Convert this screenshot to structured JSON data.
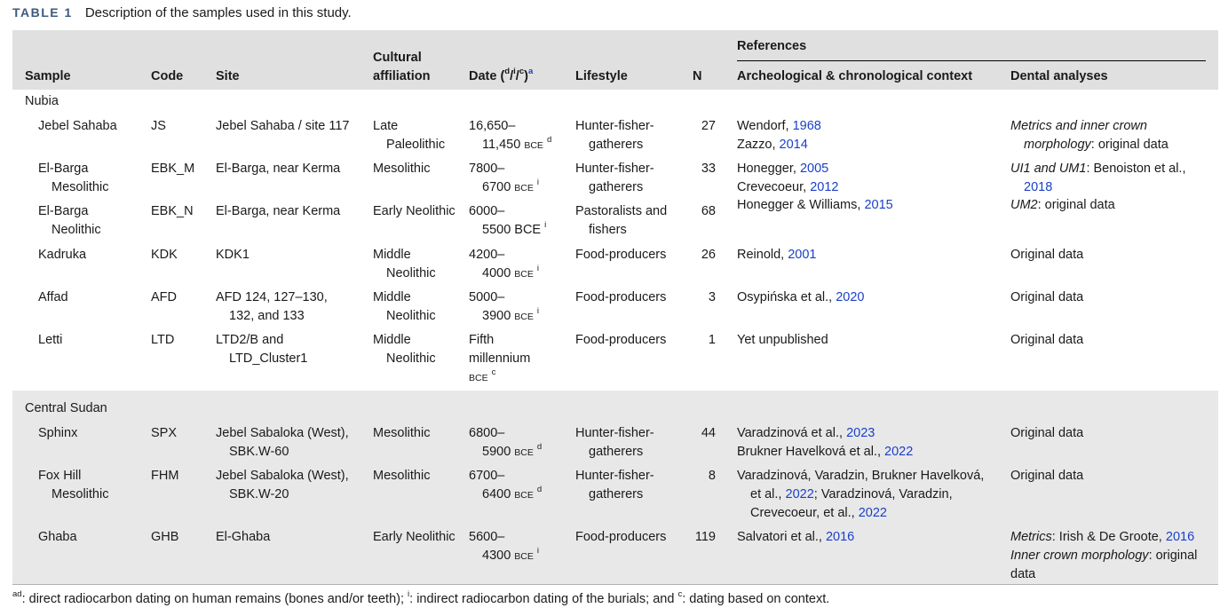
{
  "caption": {
    "label": "TABLE 1",
    "text": "Description of the samples used in this study."
  },
  "headers": {
    "sample": "Sample",
    "code": "Code",
    "site": "Site",
    "cultural_line1": "Cultural",
    "cultural_line2": "affiliation",
    "date_prefix": "Date (",
    "date_d": "d",
    "date_sep1": "/",
    "date_i": "i",
    "date_sep2": "/",
    "date_c": "c",
    "date_suffix": ")",
    "date_note": "a",
    "lifestyle": "Lifestyle",
    "n": "N",
    "references": "References",
    "archeological": "Archeological & chronological context",
    "dental": "Dental analyses"
  },
  "groups": {
    "nubia": "Nubia",
    "central": "Central Sudan"
  },
  "rows": {
    "js": {
      "sample": "Jebel Sahaba",
      "code": "JS",
      "site": "Jebel Sahaba / site 117",
      "cult": "Late Paleolithic",
      "date1": "16,650–",
      "date2": "11,450",
      "era": "BCE",
      "sup": "d",
      "life": "Hunter-fisher-gatherers",
      "n": "27",
      "ref1_a": "Wendorf, ",
      "ref1_y": "1968",
      "ref2_a": "Zazzo, ",
      "ref2_y": "2014",
      "dent_i": "Metrics and inner crown morphology",
      "dent_t": ": original data"
    },
    "ebkm": {
      "sample": "El-Barga Mesolithic",
      "code": "EBK_M",
      "site": "El-Barga, near Kerma",
      "cult": "Mesolithic",
      "date1": "7800–",
      "date2": "6700",
      "era": "BCE",
      "sup": "i",
      "life": "Hunter-fisher-gatherers",
      "n": "33",
      "ref1_a": "Honegger, ",
      "ref1_y": "2005",
      "ref2_a": "Crevecoeur, ",
      "ref2_y": "2012",
      "dent_i": "UI1 and UM1",
      "dent_t": ": Benoiston et al., ",
      "dent_y": "2018"
    },
    "ebkn": {
      "sample": "El-Barga Neolithic",
      "code": "EBK_N",
      "site": "El-Barga, near Kerma",
      "cult": "Early Neolithic",
      "date1": "6000–",
      "date2": "5500 BCE",
      "sup": "i",
      "life": "Pastoralists and fishers",
      "n": "68",
      "ref1_a": "Honegger & Williams, ",
      "ref1_y": "2015",
      "dent_i": "UM2",
      "dent_t": ": original data"
    },
    "kdk": {
      "sample": "Kadruka",
      "code": "KDK",
      "site": "KDK1",
      "cult": "Middle Neolithic",
      "date1": "4200–",
      "date2": "4000",
      "era": "BCE",
      "sup": "i",
      "life": "Food-producers",
      "n": "26",
      "ref1_a": "Reinold, ",
      "ref1_y": "2001",
      "dent": "Original data"
    },
    "afd": {
      "sample": "Affad",
      "code": "AFD",
      "site": "AFD 124, 127–130, 132, and 133",
      "cult": "Middle Neolithic",
      "date1": "5000–",
      "date2": "3900",
      "era": "BCE",
      "sup": "i",
      "life": "Food-producers",
      "n": "3",
      "ref1_a": "Osypińska et al., ",
      "ref1_y": "2020",
      "dent": "Original data"
    },
    "ltd": {
      "sample": "Letti",
      "code": "LTD",
      "site": "LTD2/B and LTD_Cluster1",
      "cult": "Middle Neolithic",
      "date1": "Fifth",
      "date2": "millennium",
      "era": "BCE",
      "sup": "c",
      "life": "Food-producers",
      "n": "1",
      "ref1_a": "Yet unpublished",
      "dent": "Original data"
    },
    "spx": {
      "sample": "Sphinx",
      "code": "SPX",
      "site": "Jebel Sabaloka (West), SBK.W-60",
      "cult": "Mesolithic",
      "date1": "6800–",
      "date2": "5900",
      "era": "BCE",
      "sup": "d",
      "life": "Hunter-fisher-gatherers",
      "n": "44",
      "ref1_a": "Varadzinová et al., ",
      "ref1_y": "2023",
      "ref2_a": "Brukner Havelková et al., ",
      "ref2_y": "2022",
      "dent": "Original data"
    },
    "fhm": {
      "sample": "Fox Hill Mesolithic",
      "code": "FHM",
      "site": "Jebel Sabaloka (West), SBK.W-20",
      "cult": "Mesolithic",
      "date1": "6700–",
      "date2": "6400",
      "era": "BCE",
      "sup": "d",
      "life": "Hunter-fisher-gatherers",
      "n": "8",
      "ref_l1": "Varadzinová, Varadzin, Brukner Havelková,",
      "ref_l2a": "et al., ",
      "ref_l2y": "2022",
      "ref_l2b": "; Varadzinová, Varadzin,",
      "ref_l3a": "Crevecoeur, et al., ",
      "ref_l3y": "2022",
      "dent": "Original data"
    },
    "ghb": {
      "sample": "Ghaba",
      "code": "GHB",
      "site": "El-Ghaba",
      "cult": "Early Neolithic",
      "date1": "5600–",
      "date2": "4300",
      "era": "BCE",
      "sup": "i",
      "life": "Food-producers",
      "n": "119",
      "ref1_a": "Salvatori et al., ",
      "ref1_y": "2016",
      "dent1_i": "Metrics",
      "dent1_t": ": Irish & De Groote, ",
      "dent1_y": "2016",
      "dent2_i": "Inner crown morphology",
      "dent2_t": ": original data"
    }
  },
  "footnote": {
    "sup1": "ad",
    "t1": ": direct radiocarbon dating on human remains (bones and/or teeth); ",
    "sup2": "i",
    "t2": ": indirect radiocarbon dating of the burials; and ",
    "sup3": "c",
    "t3": ": dating based on context."
  }
}
